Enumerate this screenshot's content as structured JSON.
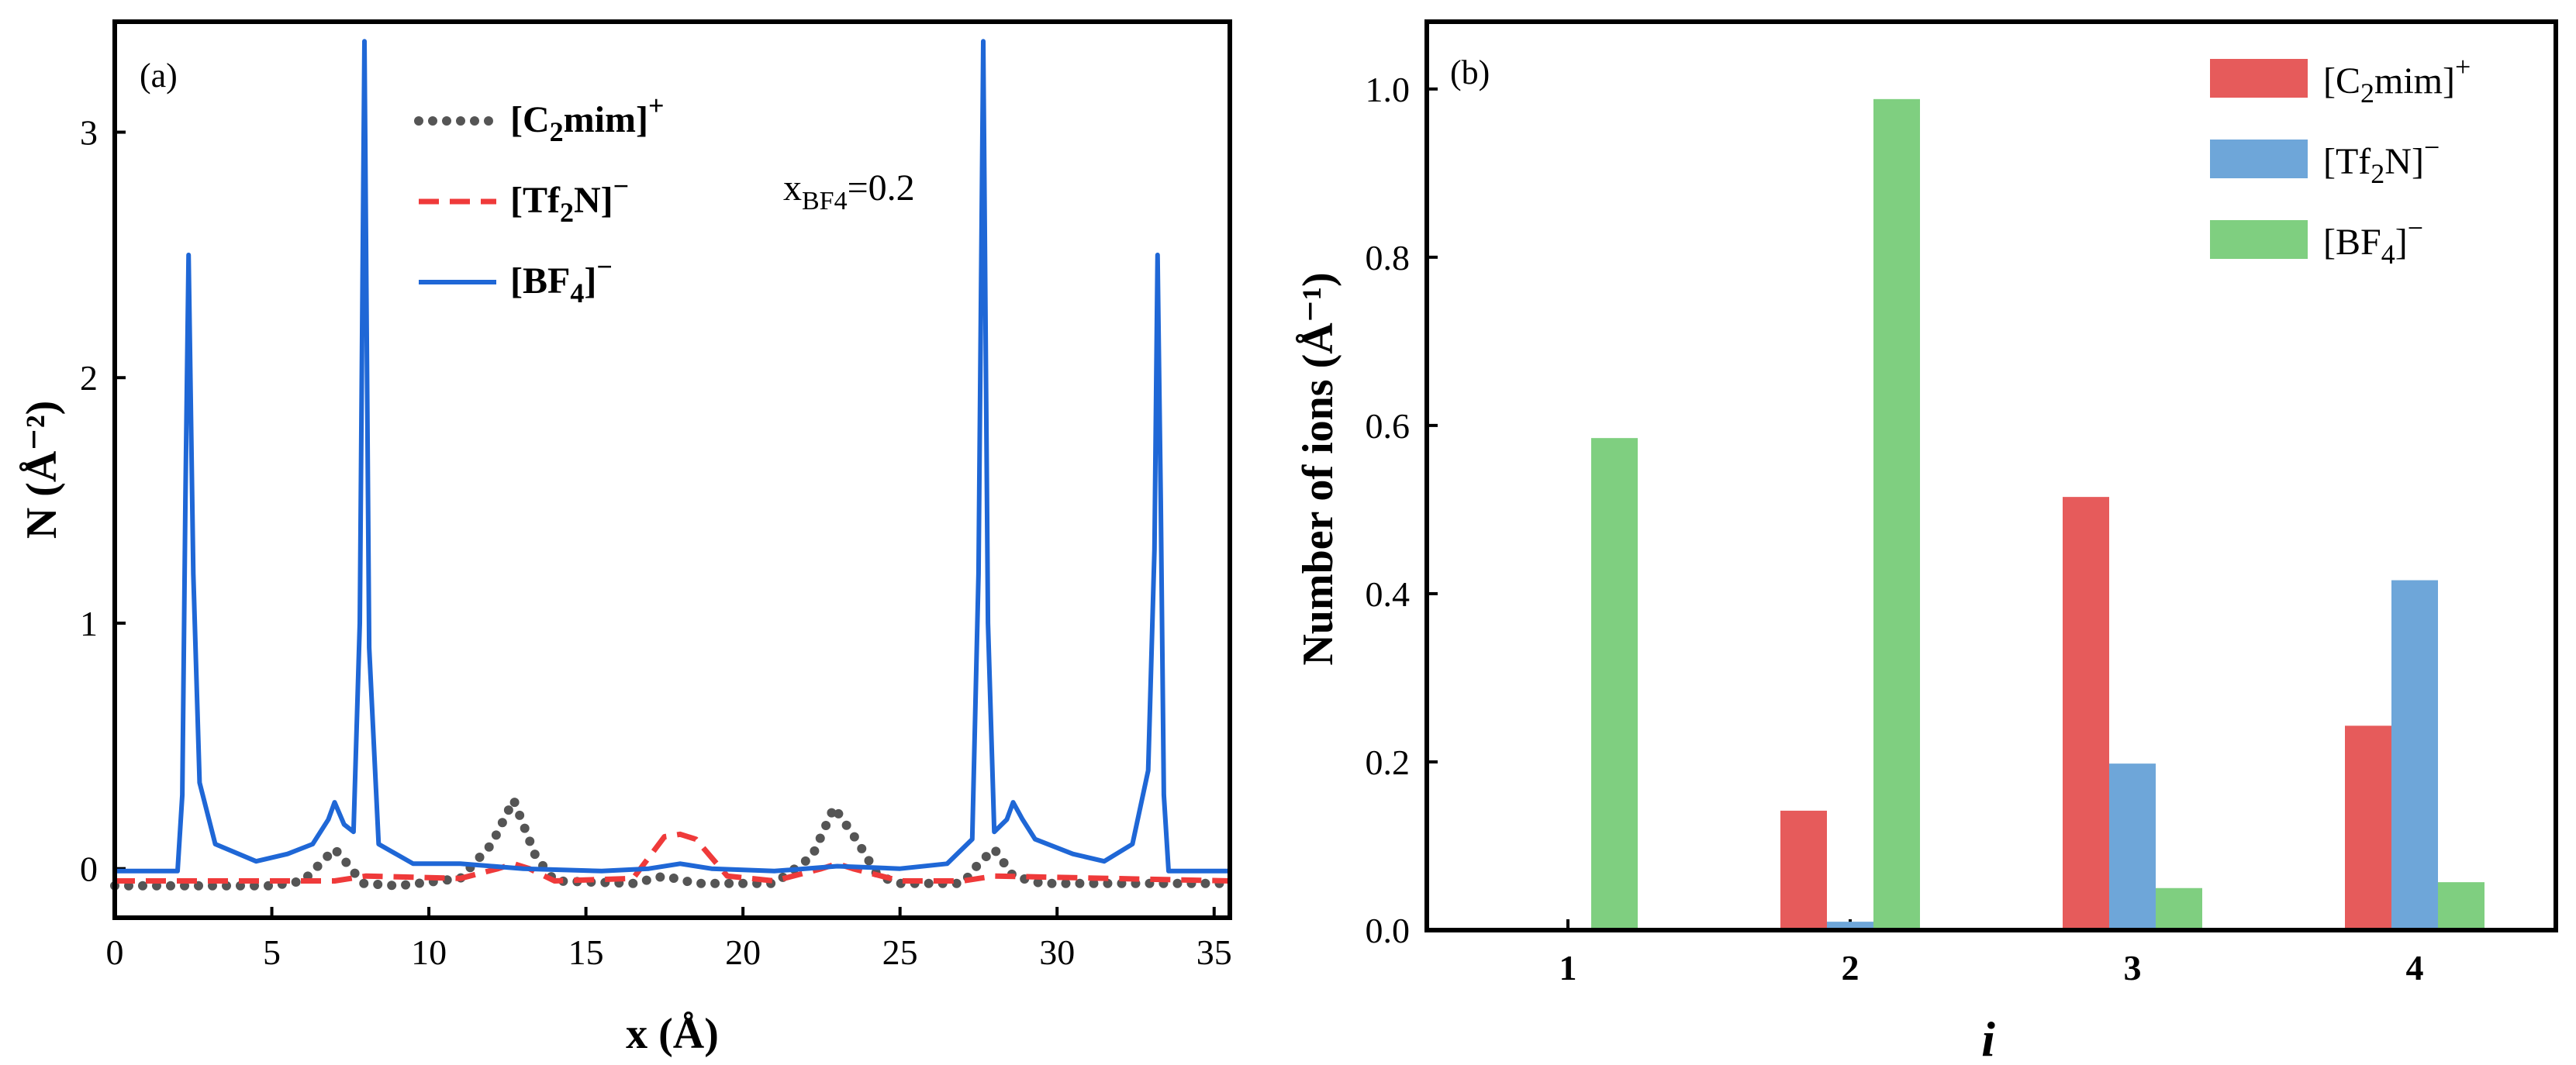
{
  "colors": {
    "cation": "#e65b5b",
    "tf2n": "#6ea6d9",
    "bf4": "#7fcf80",
    "bf4_line": "#1f67d6",
    "cation_dots": "#555555",
    "tf2n_dash": "#ef3a3a"
  },
  "chart_data": [
    {
      "type": "line",
      "panel": "(a)",
      "xlabel": "x (Å)",
      "ylabel": "N (Å⁻²)",
      "xlim": [
        0,
        35.5
      ],
      "ylim": [
        -0.2,
        3.45
      ],
      "x_ticks": [
        "0",
        "5",
        "10",
        "15",
        "20",
        "25",
        "30",
        "35"
      ],
      "y_ticks": [
        "0",
        "1",
        "2",
        "3"
      ],
      "annotation": {
        "text": "x",
        "sub": "BF4",
        "after": "=0.2"
      },
      "legend": [
        {
          "key": "cation",
          "text": "[C",
          "sub": "2",
          "mid": "mim]",
          "sup": "+"
        },
        {
          "key": "tf2n",
          "text": "[Tf",
          "sub": "2",
          "mid": "N]",
          "sup": "−"
        },
        {
          "key": "bf4",
          "text": "[BF",
          "sub": "4",
          "mid": "]",
          "sup": "−"
        }
      ],
      "series": [
        {
          "name": "[C2mim]+",
          "style": "dotted",
          "points": [
            [
              0,
              -0.07
            ],
            [
              5,
              -0.07
            ],
            [
              6,
              -0.05
            ],
            [
              7,
              0.08
            ],
            [
              7.4,
              0.02
            ],
            [
              7.9,
              -0.06
            ],
            [
              9,
              -0.07
            ],
            [
              11,
              -0.04
            ],
            [
              12,
              0.1
            ],
            [
              12.7,
              0.28
            ],
            [
              13.4,
              0.05
            ],
            [
              14,
              -0.05
            ],
            [
              16.5,
              -0.06
            ],
            [
              17.5,
              -0.03
            ],
            [
              18.5,
              -0.06
            ],
            [
              21,
              -0.06
            ],
            [
              22.2,
              0.05
            ],
            [
              22.9,
              0.25
            ],
            [
              23.6,
              0.12
            ],
            [
              24.3,
              -0.03
            ],
            [
              25,
              -0.06
            ],
            [
              27,
              -0.06
            ],
            [
              27.5,
              0.02
            ],
            [
              28,
              0.08
            ],
            [
              28.6,
              -0.03
            ],
            [
              29.5,
              -0.06
            ],
            [
              35.5,
              -0.06
            ]
          ]
        },
        {
          "name": "[Tf2N]-",
          "style": "dashed",
          "points": [
            [
              0,
              -0.05
            ],
            [
              7,
              -0.05
            ],
            [
              8,
              -0.03
            ],
            [
              11,
              -0.04
            ],
            [
              12.2,
              0.0
            ],
            [
              12.7,
              0.02
            ],
            [
              13.2,
              0.0
            ],
            [
              14,
              -0.05
            ],
            [
              16.5,
              -0.04
            ],
            [
              17.5,
              0.13
            ],
            [
              18,
              0.14
            ],
            [
              18.5,
              0.12
            ],
            [
              19.5,
              -0.03
            ],
            [
              21,
              -0.05
            ],
            [
              22.5,
              0.0
            ],
            [
              23,
              0.02
            ],
            [
              23.5,
              0.0
            ],
            [
              25,
              -0.05
            ],
            [
              27,
              -0.05
            ],
            [
              28,
              -0.03
            ],
            [
              35.5,
              -0.05
            ]
          ]
        },
        {
          "name": "[BF4]-",
          "style": "solid",
          "points": [
            [
              0,
              -0.01
            ],
            [
              2.0,
              -0.01
            ],
            [
              2.15,
              0.3
            ],
            [
              2.25,
              1.5
            ],
            [
              2.35,
              2.5
            ],
            [
              2.5,
              1.2
            ],
            [
              2.7,
              0.35
            ],
            [
              3.2,
              0.1
            ],
            [
              4.5,
              0.03
            ],
            [
              5.5,
              0.06
            ],
            [
              6.3,
              0.1
            ],
            [
              6.8,
              0.2
            ],
            [
              7.0,
              0.27
            ],
            [
              7.3,
              0.18
            ],
            [
              7.6,
              0.15
            ],
            [
              7.8,
              1.0
            ],
            [
              7.95,
              3.37
            ],
            [
              8.1,
              0.9
            ],
            [
              8.4,
              0.1
            ],
            [
              9.5,
              0.02
            ],
            [
              11,
              0.02
            ],
            [
              13,
              0.0
            ],
            [
              15.5,
              -0.01
            ],
            [
              17,
              0.0
            ],
            [
              18,
              0.02
            ],
            [
              19,
              0.0
            ],
            [
              21,
              -0.01
            ],
            [
              23,
              0.01
            ],
            [
              25,
              0.0
            ],
            [
              26.5,
              0.02
            ],
            [
              27.3,
              0.12
            ],
            [
              27.5,
              1.2
            ],
            [
              27.65,
              3.37
            ],
            [
              27.8,
              1.0
            ],
            [
              28.0,
              0.15
            ],
            [
              28.4,
              0.2
            ],
            [
              28.6,
              0.27
            ],
            [
              28.9,
              0.2
            ],
            [
              29.3,
              0.12
            ],
            [
              30.5,
              0.06
            ],
            [
              31.5,
              0.03
            ],
            [
              32.4,
              0.1
            ],
            [
              32.9,
              0.4
            ],
            [
              33.1,
              1.3
            ],
            [
              33.2,
              2.5
            ],
            [
              33.3,
              1.5
            ],
            [
              33.4,
              0.3
            ],
            [
              33.55,
              -0.01
            ],
            [
              35.5,
              -0.01
            ]
          ]
        }
      ]
    },
    {
      "type": "bar",
      "panel": "(b)",
      "xlabel": "i",
      "ylabel": "Number of ions (Å⁻¹)",
      "categories": [
        "1",
        "2",
        "3",
        "4"
      ],
      "ylim": [
        0,
        1.08
      ],
      "y_ticks": [
        "0.0",
        "0.2",
        "0.4",
        "0.6",
        "0.8",
        "1.0"
      ],
      "legend": [
        {
          "key": "cation",
          "text": "[C",
          "sub": "2",
          "mid": "mim]",
          "sup": "+"
        },
        {
          "key": "tf2n",
          "text": "[Tf",
          "sub": "2",
          "mid": "N]",
          "sup": "−"
        },
        {
          "key": "bf4",
          "text": "[BF",
          "sub": "4",
          "mid": "]",
          "sup": "−"
        }
      ],
      "series": [
        {
          "name": "[C2mim]+",
          "key": "cation",
          "values": [
            0,
            0.142,
            0.515,
            0.243
          ]
        },
        {
          "name": "[Tf2N]-",
          "key": "tf2n",
          "values": [
            0,
            0.01,
            0.198,
            0.416
          ]
        },
        {
          "name": "[BF4]-",
          "key": "bf4",
          "values": [
            0.585,
            0.988,
            0.05,
            0.057
          ]
        }
      ]
    }
  ]
}
